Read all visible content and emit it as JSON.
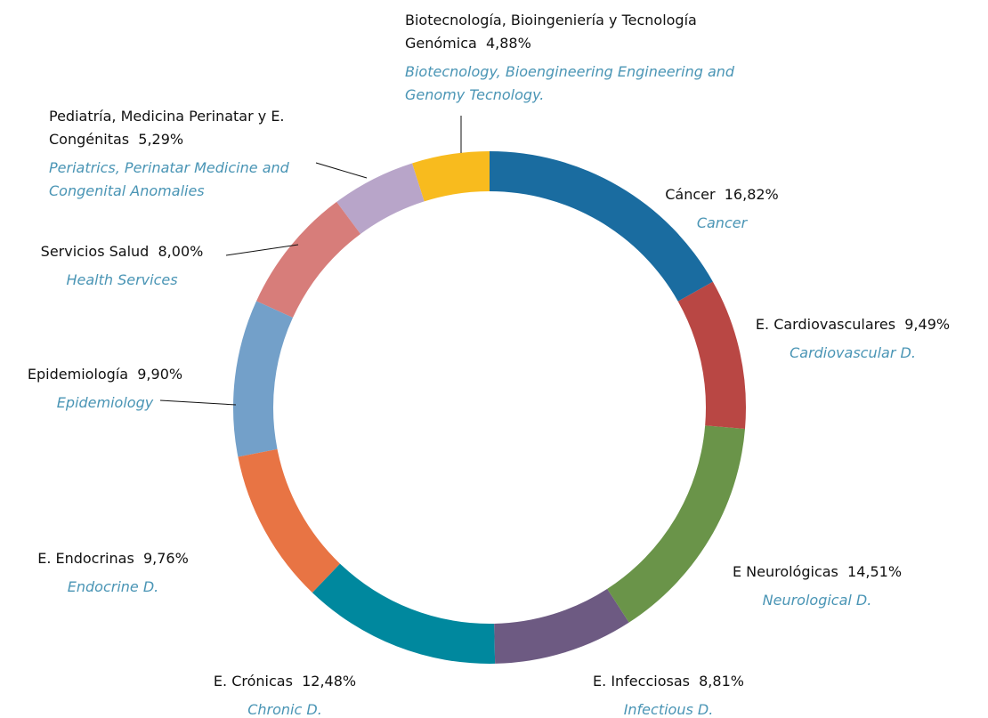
{
  "chart_data": {
    "type": "donut",
    "categories": [
      "Cáncer",
      "E. Cardiovasculares",
      "E Neurológicas",
      "E. Infecciosas",
      "E. Crónicas",
      "E. Endocrinas",
      "Epidemiología",
      "Servicios Salud",
      "Pediatría, Medicina Perinatar y E. Congénitas",
      "Biotecnología, Bioingeniería y Tecnología Genómica"
    ],
    "translations": [
      "Cancer",
      "Cardiovascular D.",
      "Neurological D.",
      "Infectious D.",
      "Chronic D.",
      "Endocrine D.",
      "Epidemiology",
      "Health Services",
      "Periatrics, Perinatar Medicine and Congenital Anomalies",
      "Biotecnology, Bioengineering Engineering and Genomy Tecnology."
    ],
    "values": [
      16.82,
      9.49,
      14.51,
      8.81,
      12.48,
      9.76,
      9.9,
      8.0,
      5.29,
      4.88
    ],
    "value_labels": [
      "16,82%",
      "9,49%",
      "14,51%",
      "8,81%",
      "12,48%",
      "9,76%",
      "9,90%",
      "8,00%",
      "5,29%",
      "4,88%"
    ],
    "colors": [
      "#1a6ca0",
      "#b94744",
      "#6a9449",
      "#6d5a82",
      "#00889e",
      "#e87444",
      "#73a0c9",
      "#d77d7a",
      "#b8a5c9",
      "#f8bb1e"
    ]
  }
}
